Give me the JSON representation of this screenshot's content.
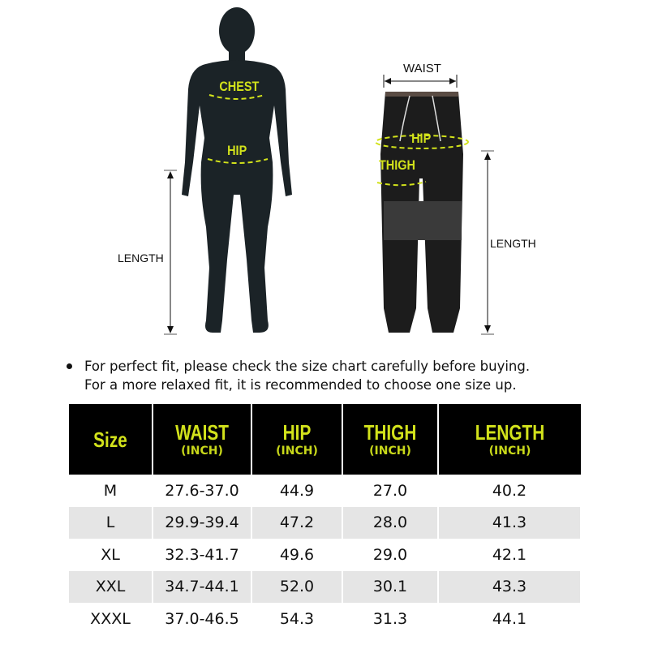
{
  "diagram": {
    "body_labels": {
      "chest": "CHEST",
      "hip": "HIP",
      "length": "LENGTH"
    },
    "pants_labels": {
      "waist": "WAIST",
      "hip": "HIP",
      "thigh": "THIGH",
      "length": "LENGTH"
    },
    "accent_color": "#d2e21b"
  },
  "note": {
    "line1": "For perfect fit, please check the size chart carefully before buying.",
    "line2": "For a more relaxed fit, it is recommended to choose one size up."
  },
  "table": {
    "headers": [
      {
        "label": "Size",
        "unit": ""
      },
      {
        "label": "WAIST",
        "unit": "(INCH)"
      },
      {
        "label": "HIP",
        "unit": "(INCH)"
      },
      {
        "label": "THIGH",
        "unit": "(INCH)"
      },
      {
        "label": "LENGTH",
        "unit": "(INCH)"
      }
    ],
    "rows": [
      [
        "M",
        "27.6-37.0",
        "44.9",
        "27.0",
        "40.2"
      ],
      [
        "L",
        "29.9-39.4",
        "47.2",
        "28.0",
        "41.3"
      ],
      [
        "XL",
        "32.3-41.7",
        "49.6",
        "29.0",
        "42.1"
      ],
      [
        "XXL",
        "34.7-44.1",
        "52.0",
        "30.1",
        "43.3"
      ],
      [
        "XXXL",
        "37.0-46.5",
        "54.3",
        "31.3",
        "44.1"
      ]
    ]
  }
}
